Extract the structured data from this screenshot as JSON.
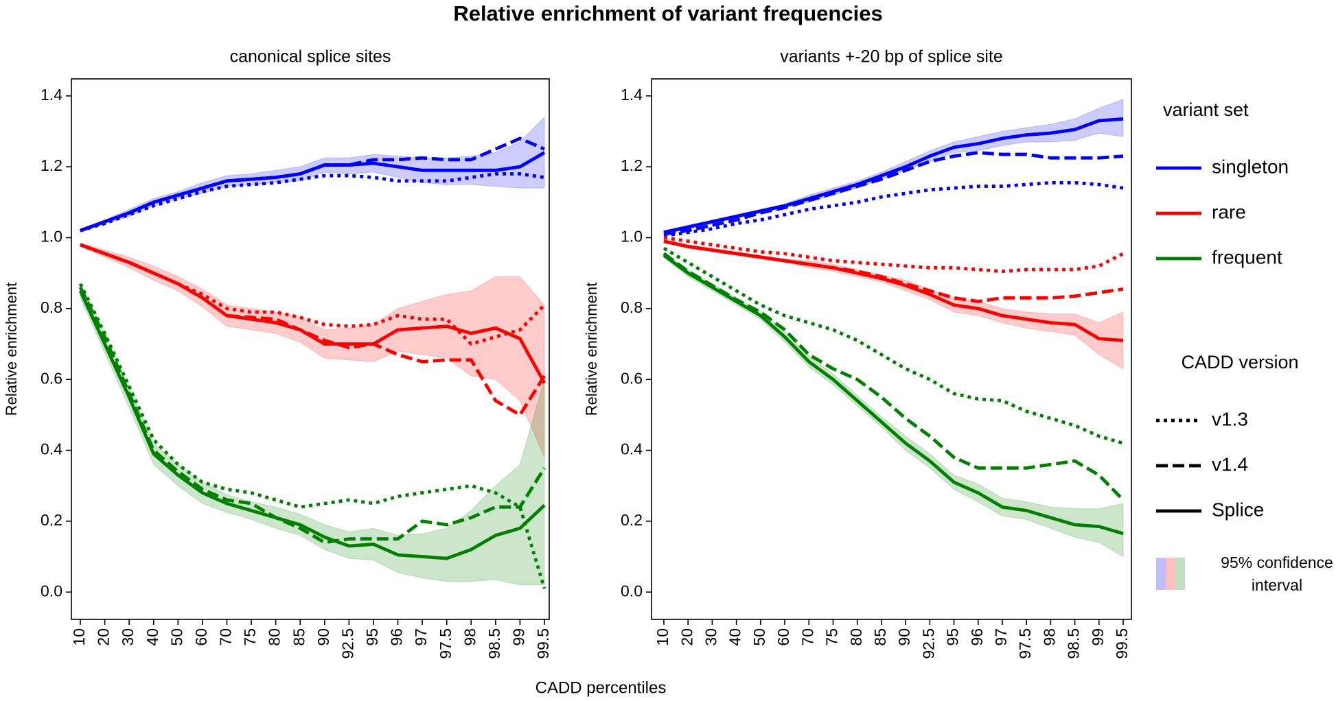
{
  "title": "Relative enrichment of variant frequencies",
  "xlabel": "CADD percentiles",
  "legend": {
    "position": "right",
    "variant_set": {
      "title": "variant set",
      "entries": [
        {
          "name": "singleton",
          "color": "#0000ff"
        },
        {
          "name": "rare",
          "color": "#ff0000"
        },
        {
          "name": "frequent",
          "color": "#008000"
        }
      ]
    },
    "cadd_version": {
      "title": "CADD version",
      "entries": [
        {
          "name": "v1.3",
          "dash": "dotted"
        },
        {
          "name": "v1.4",
          "dash": "dashed"
        },
        {
          "name": "Splice",
          "dash": "solid"
        }
      ]
    },
    "ci": {
      "lines": [
        "95% confidence",
        "interval"
      ]
    }
  },
  "chart_data": [
    {
      "type": "line",
      "title": "canonical splice sites",
      "ylabel": "Relative enrichment",
      "categories": [
        "10",
        "20",
        "30",
        "40",
        "50",
        "60",
        "70",
        "75",
        "80",
        "85",
        "90",
        "92.5",
        "95",
        "96",
        "97",
        "97.5",
        "98",
        "98.5",
        "99",
        "99.5"
      ],
      "ylim": [
        -0.077,
        1.448
      ],
      "yticks": [
        {
          "value": 0,
          "label": "0.0"
        },
        0.2,
        0.4,
        0.6,
        0.8,
        {
          "value": 1,
          "label": "1.0"
        },
        1.2,
        1.4
      ],
      "series": [
        {
          "values": [
            [
              1.02,
              1.04,
              1.065,
              1.09,
              1.11,
              1.13,
              1.145,
              1.15,
              1.155,
              1.165,
              1.175,
              1.175,
              1.17,
              1.16,
              1.16,
              1.16,
              1.17,
              1.18,
              1.18,
              1.17
            ],
            [
              1.02,
              1.045,
              1.07,
              1.1,
              1.12,
              1.14,
              1.16,
              1.165,
              1.17,
              1.18,
              1.205,
              1.205,
              1.22,
              1.22,
              1.225,
              1.22,
              1.22,
              1.25,
              1.28,
              1.25
            ],
            [
              1.02,
              1.045,
              1.07,
              1.1,
              1.12,
              1.14,
              1.16,
              1.165,
              1.17,
              1.18,
              1.205,
              1.205,
              1.21,
              1.2,
              1.19,
              1.19,
              1.19,
              1.19,
              1.2,
              1.24
            ]
          ],
          "ci_high": [
            1.025,
            1.05,
            1.08,
            1.11,
            1.13,
            1.155,
            1.175,
            1.18,
            1.19,
            1.2,
            1.225,
            1.225,
            1.235,
            1.23,
            1.225,
            1.225,
            1.23,
            1.24,
            1.27,
            1.34
          ],
          "ci_low": [
            1.015,
            1.04,
            1.06,
            1.09,
            1.11,
            1.125,
            1.145,
            1.15,
            1.155,
            1.16,
            1.185,
            1.18,
            1.185,
            1.17,
            1.155,
            1.15,
            1.15,
            1.145,
            1.14,
            1.14
          ]
        },
        {
          "values": [
            [
              0.98,
              0.955,
              0.93,
              0.9,
              0.87,
              0.84,
              0.8,
              0.79,
              0.79,
              0.775,
              0.755,
              0.75,
              0.755,
              0.78,
              0.77,
              0.77,
              0.7,
              0.72,
              0.74,
              0.81
            ],
            [
              0.98,
              0.955,
              0.93,
              0.9,
              0.87,
              0.83,
              0.78,
              0.775,
              0.77,
              0.74,
              0.71,
              0.69,
              0.7,
              0.67,
              0.65,
              0.655,
              0.655,
              0.54,
              0.5,
              0.61
            ],
            [
              0.98,
              0.955,
              0.93,
              0.9,
              0.87,
              0.83,
              0.78,
              0.77,
              0.76,
              0.74,
              0.7,
              0.7,
              0.7,
              0.74,
              0.745,
              0.75,
              0.73,
              0.745,
              0.715,
              0.59
            ]
          ],
          "ci_high": [
            0.985,
            0.965,
            0.945,
            0.92,
            0.89,
            0.855,
            0.81,
            0.8,
            0.79,
            0.775,
            0.74,
            0.745,
            0.755,
            0.8,
            0.82,
            0.84,
            0.85,
            0.89,
            0.89,
            0.81
          ],
          "ci_low": [
            0.975,
            0.945,
            0.915,
            0.88,
            0.85,
            0.805,
            0.75,
            0.74,
            0.73,
            0.705,
            0.66,
            0.655,
            0.65,
            0.68,
            0.67,
            0.66,
            0.61,
            0.6,
            0.54,
            0.38
          ]
        },
        {
          "values": [
            [
              0.87,
              0.73,
              0.58,
              0.43,
              0.36,
              0.31,
              0.29,
              0.28,
              0.26,
              0.24,
              0.25,
              0.26,
              0.25,
              0.27,
              0.28,
              0.29,
              0.3,
              0.28,
              0.24,
              0.01
            ],
            [
              0.86,
              0.72,
              0.56,
              0.4,
              0.34,
              0.29,
              0.26,
              0.25,
              0.21,
              0.18,
              0.14,
              0.15,
              0.15,
              0.15,
              0.2,
              0.19,
              0.21,
              0.24,
              0.24,
              0.35
            ],
            [
              0.85,
              0.7,
              0.55,
              0.39,
              0.33,
              0.28,
              0.25,
              0.23,
              0.21,
              0.19,
              0.155,
              0.13,
              0.135,
              0.105,
              0.1,
              0.095,
              0.12,
              0.16,
              0.18,
              0.245
            ]
          ],
          "ci_high": [
            0.87,
            0.725,
            0.58,
            0.42,
            0.36,
            0.31,
            0.275,
            0.255,
            0.24,
            0.22,
            0.19,
            0.17,
            0.18,
            0.16,
            0.165,
            0.18,
            0.23,
            0.3,
            0.36,
            0.6
          ],
          "ci_low": [
            0.83,
            0.675,
            0.52,
            0.36,
            0.3,
            0.25,
            0.225,
            0.205,
            0.18,
            0.16,
            0.12,
            0.095,
            0.09,
            0.055,
            0.04,
            0.03,
            0.03,
            0.035,
            0.02,
            0.02
          ]
        }
      ]
    },
    {
      "type": "line",
      "title": "variants +-20 bp of splice site",
      "ylabel": "Relative enrichment",
      "categories": [
        "10",
        "20",
        "30",
        "40",
        "50",
        "60",
        "70",
        "75",
        "80",
        "85",
        "90",
        "92.5",
        "95",
        "96",
        "97",
        "97.5",
        "98",
        "98.5",
        "99",
        "99.5"
      ],
      "ylim": [
        -0.077,
        1.448
      ],
      "yticks": [
        {
          "value": 0,
          "label": "0.0"
        },
        0.2,
        0.4,
        0.6,
        0.8,
        {
          "value": 1,
          "label": "1.0"
        },
        1.2,
        1.4
      ],
      "series": [
        {
          "values": [
            [
              1.005,
              1.015,
              1.025,
              1.04,
              1.05,
              1.065,
              1.08,
              1.09,
              1.1,
              1.115,
              1.125,
              1.135,
              1.14,
              1.145,
              1.145,
              1.15,
              1.155,
              1.155,
              1.15,
              1.14
            ],
            [
              1.01,
              1.02,
              1.035,
              1.05,
              1.07,
              1.085,
              1.105,
              1.125,
              1.145,
              1.165,
              1.19,
              1.215,
              1.23,
              1.24,
              1.235,
              1.235,
              1.225,
              1.225,
              1.225,
              1.23
            ],
            [
              1.015,
              1.03,
              1.045,
              1.06,
              1.075,
              1.09,
              1.11,
              1.13,
              1.15,
              1.175,
              1.2,
              1.23,
              1.255,
              1.265,
              1.28,
              1.29,
              1.295,
              1.305,
              1.33,
              1.335
            ]
          ],
          "ci_high": [
            1.02,
            1.035,
            1.05,
            1.065,
            1.08,
            1.095,
            1.12,
            1.14,
            1.16,
            1.185,
            1.215,
            1.245,
            1.27,
            1.285,
            1.3,
            1.31,
            1.32,
            1.335,
            1.365,
            1.39
          ],
          "ci_low": [
            1.01,
            1.025,
            1.04,
            1.055,
            1.07,
            1.085,
            1.1,
            1.12,
            1.14,
            1.165,
            1.19,
            1.215,
            1.24,
            1.245,
            1.26,
            1.27,
            1.27,
            1.275,
            1.295,
            1.285
          ]
        },
        {
          "values": [
            [
              1.0,
              0.99,
              0.98,
              0.97,
              0.96,
              0.955,
              0.945,
              0.935,
              0.93,
              0.925,
              0.92,
              0.915,
              0.915,
              0.91,
              0.905,
              0.91,
              0.91,
              0.91,
              0.92,
              0.955
            ],
            [
              0.99,
              0.975,
              0.965,
              0.955,
              0.945,
              0.935,
              0.925,
              0.915,
              0.905,
              0.89,
              0.87,
              0.85,
              0.83,
              0.82,
              0.83,
              0.83,
              0.83,
              0.835,
              0.845,
              0.855
            ],
            [
              0.99,
              0.975,
              0.965,
              0.955,
              0.945,
              0.935,
              0.925,
              0.915,
              0.9,
              0.885,
              0.865,
              0.84,
              0.81,
              0.8,
              0.78,
              0.77,
              0.76,
              0.755,
              0.715,
              0.71
            ]
          ],
          "ci_high": [
            0.995,
            0.98,
            0.97,
            0.96,
            0.95,
            0.94,
            0.935,
            0.925,
            0.91,
            0.895,
            0.88,
            0.855,
            0.83,
            0.82,
            0.8,
            0.79,
            0.785,
            0.785,
            0.76,
            0.79
          ],
          "ci_low": [
            0.985,
            0.97,
            0.96,
            0.95,
            0.94,
            0.93,
            0.915,
            0.905,
            0.89,
            0.875,
            0.85,
            0.825,
            0.79,
            0.78,
            0.76,
            0.745,
            0.735,
            0.725,
            0.67,
            0.63
          ]
        },
        {
          "values": [
            [
              0.97,
              0.93,
              0.89,
              0.85,
              0.81,
              0.78,
              0.76,
              0.74,
              0.71,
              0.67,
              0.63,
              0.6,
              0.56,
              0.545,
              0.54,
              0.51,
              0.49,
              0.47,
              0.44,
              0.42
            ],
            [
              0.955,
              0.905,
              0.865,
              0.825,
              0.79,
              0.74,
              0.67,
              0.63,
              0.6,
              0.55,
              0.49,
              0.44,
              0.38,
              0.35,
              0.35,
              0.35,
              0.36,
              0.37,
              0.33,
              0.26
            ],
            [
              0.95,
              0.9,
              0.86,
              0.82,
              0.78,
              0.72,
              0.65,
              0.6,
              0.54,
              0.48,
              0.42,
              0.37,
              0.31,
              0.28,
              0.24,
              0.23,
              0.21,
              0.19,
              0.185,
              0.165
            ]
          ],
          "ci_high": [
            0.955,
            0.91,
            0.87,
            0.83,
            0.79,
            0.735,
            0.665,
            0.615,
            0.555,
            0.495,
            0.44,
            0.39,
            0.33,
            0.305,
            0.265,
            0.255,
            0.24,
            0.235,
            0.235,
            0.25
          ],
          "ci_low": [
            0.945,
            0.89,
            0.85,
            0.81,
            0.77,
            0.705,
            0.635,
            0.585,
            0.525,
            0.465,
            0.4,
            0.35,
            0.29,
            0.255,
            0.215,
            0.205,
            0.18,
            0.155,
            0.14,
            0.1
          ]
        }
      ]
    }
  ]
}
